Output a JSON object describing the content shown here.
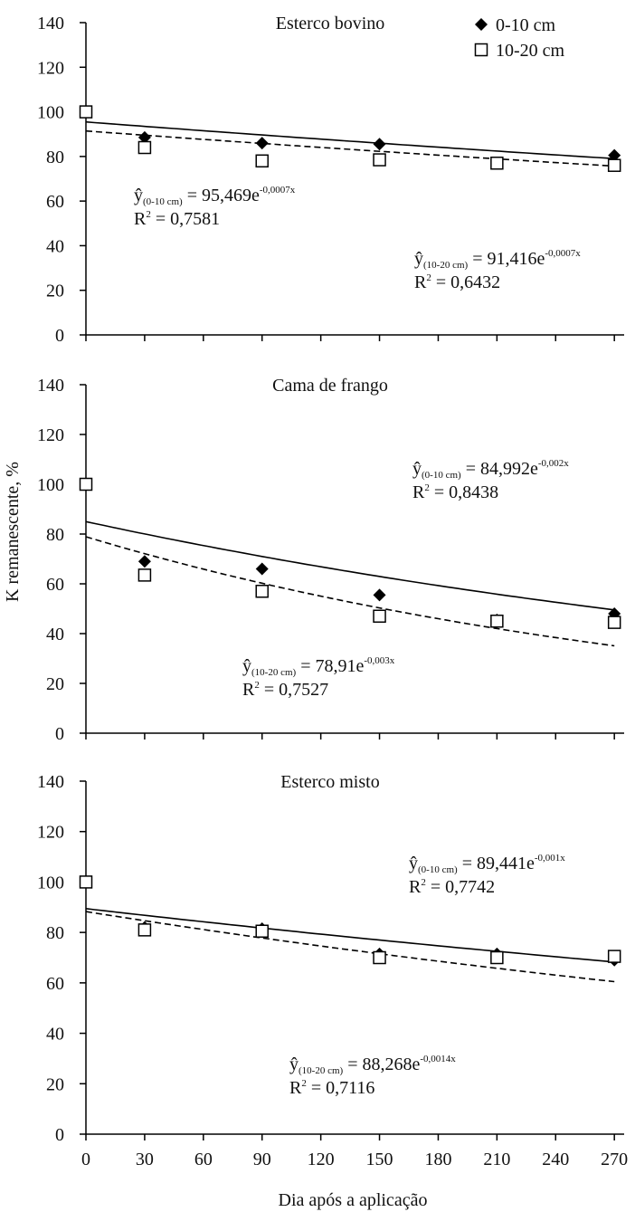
{
  "chart_data": [
    {
      "type": "scatter",
      "title": "Esterco bovino",
      "x": [
        0,
        30,
        90,
        150,
        210,
        270
      ],
      "series": [
        {
          "name": "0-10 cm",
          "color": "#000000",
          "marker": "diamond",
          "values": [
            100,
            88.5,
            86,
            85.5,
            77,
            80.5
          ]
        },
        {
          "name": "10-20 cm",
          "color": "#000000",
          "marker": "square",
          "values": [
            100,
            84,
            78,
            78.5,
            77,
            76
          ]
        }
      ],
      "fits": [
        {
          "a": 95.469,
          "b": -0.0007,
          "style": "solid"
        },
        {
          "a": 91.416,
          "b": -0.0007,
          "style": "dashed"
        }
      ],
      "annotations": [
        {
          "symbol": "ŷ",
          "subscript": "(0-10 cm)",
          "text": " = 95,469e",
          "superscript": "-0,0007x",
          "r2_symbol": "R",
          "r2_power": "2",
          "r2_text": " = 0,7581"
        },
        {
          "symbol": "ŷ",
          "subscript": "(10-20 cm)",
          "text": " = 91,416e",
          "superscript": "-0,0007x",
          "r2_symbol": "R",
          "r2_power": "2",
          "r2_text": " = 0,6432"
        }
      ],
      "xlim": [
        0,
        275
      ],
      "xticks": [
        0,
        30,
        60,
        90,
        120,
        150,
        180,
        210,
        240,
        270
      ],
      "show_xtick_labels": false,
      "ylim": [
        0,
        140
      ],
      "yticks": [
        0,
        20,
        40,
        60,
        80,
        100,
        120,
        140
      ],
      "legend": "upper right"
    },
    {
      "type": "scatter",
      "title": "Cama de frango",
      "ylabel": "K remanescente, %",
      "x": [
        0,
        30,
        90,
        150,
        210,
        270
      ],
      "series": [
        {
          "color": "#000000",
          "marker": "diamond",
          "values": [
            100,
            69,
            66,
            55.5,
            45.5,
            48
          ]
        },
        {
          "color": "#000000",
          "marker": "square",
          "values": [
            100,
            63.5,
            57,
            47,
            45,
            44.5
          ]
        }
      ],
      "fits": [
        {
          "a": 84.992,
          "b": -0.002,
          "style": "solid"
        },
        {
          "a": 78.91,
          "b": -0.003,
          "style": "dashed"
        }
      ],
      "annotations": [
        {
          "symbol": "ŷ",
          "subscript": "(0-10 cm)",
          "text": " = 84,992e",
          "superscript": "-0,002x",
          "r2_symbol": "R",
          "r2_power": "2",
          "r2_text": " = 0,8438"
        },
        {
          "symbol": "ŷ",
          "subscript": "(10-20 cm)",
          "text": " = 78,91e",
          "superscript": "-0,003x",
          "r2_symbol": "R",
          "r2_power": "2",
          "r2_text": " = 0,7527"
        }
      ],
      "xlim": [
        0,
        275
      ],
      "xticks": [
        0,
        30,
        60,
        90,
        120,
        150,
        180,
        210,
        240,
        270
      ],
      "show_xtick_labels": false,
      "ylim": [
        0,
        140
      ],
      "yticks": [
        0,
        20,
        40,
        60,
        80,
        100,
        120,
        140
      ]
    },
    {
      "type": "scatter",
      "title": "Esterco misto",
      "xlabel": "Dia após a aplicação",
      "x": [
        0,
        30,
        90,
        150,
        210,
        270
      ],
      "series": [
        {
          "color": "#000000",
          "marker": "diamond",
          "values": [
            100,
            82,
            81.5,
            71.5,
            71.5,
            69
          ]
        },
        {
          "color": "#000000",
          "marker": "square",
          "values": [
            100,
            81,
            80.5,
            70,
            70,
            70.5
          ]
        }
      ],
      "fits": [
        {
          "a": 89.441,
          "b": -0.001,
          "style": "solid"
        },
        {
          "a": 88.268,
          "b": -0.0014,
          "style": "dashed"
        }
      ],
      "annotations": [
        {
          "symbol": "ŷ",
          "subscript": "(0-10 cm)",
          "text": " = 89,441e",
          "superscript": "-0,001x",
          "r2_symbol": "R",
          "r2_power": "2",
          "r2_text": " = 0,7742"
        },
        {
          "symbol": "ŷ",
          "subscript": "(10-20 cm)",
          "text": " = 88,268e",
          "superscript": "-0,0014x",
          "r2_symbol": "R",
          "r2_power": "2",
          "r2_text": " = 0,7116"
        }
      ],
      "xlim": [
        0,
        275
      ],
      "xticks": [
        0,
        30,
        60,
        90,
        120,
        150,
        180,
        210,
        240,
        270
      ],
      "show_xtick_labels": true,
      "ylim": [
        0,
        140
      ],
      "yticks": [
        0,
        20,
        40,
        60,
        80,
        100,
        120,
        140
      ]
    }
  ]
}
